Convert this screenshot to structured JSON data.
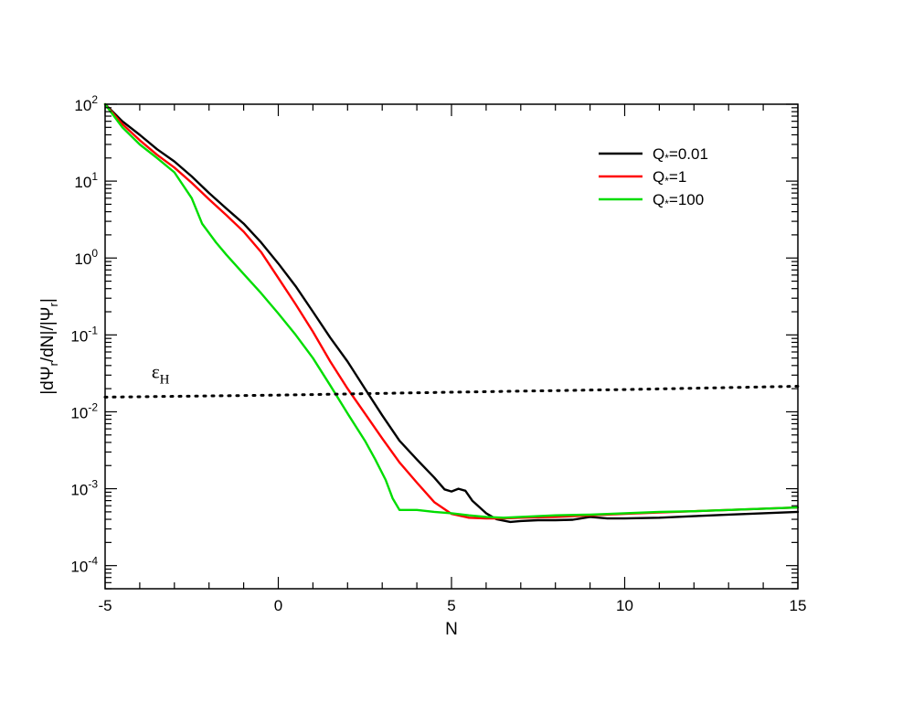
{
  "chart_data": {
    "type": "line",
    "xlabel": "N",
    "ylabel": "|dΨr/dN|/|Ψr|",
    "xlim": [
      -5,
      15
    ],
    "ylim": [
      5e-05,
      100
    ],
    "yscale": "log",
    "grid": false,
    "legend_position": "top-right",
    "x_ticks": [
      -5,
      0,
      5,
      10,
      15
    ],
    "x_tick_labels": [
      "-5",
      "0",
      "5",
      "10",
      "15"
    ],
    "y_ticks": [
      0.0001,
      0.001,
      0.01,
      0.1,
      1,
      10,
      100
    ],
    "y_tick_base": "10",
    "y_tick_exponents": [
      "-4",
      "-3",
      "-2",
      "-1",
      "0",
      "1",
      "2"
    ],
    "series": [
      {
        "name": "Q*=0.01",
        "color": "#000000",
        "style": "solid",
        "x": [
          -5,
          -4.5,
          -4,
          -3.5,
          -3,
          -2.5,
          -2,
          -1.5,
          -1,
          -0.5,
          0,
          0.5,
          1,
          1.5,
          2,
          2.5,
          3,
          3.5,
          4,
          4.5,
          4.8,
          5.0,
          5.2,
          5.4,
          5.6,
          5.8,
          6.0,
          6.3,
          6.7,
          7,
          7.5,
          8,
          8.5,
          9,
          9.5,
          10,
          11,
          12,
          13,
          14,
          15
        ],
        "y": [
          100,
          60,
          40,
          26,
          18,
          11.5,
          7,
          4.4,
          2.8,
          1.6,
          0.85,
          0.43,
          0.2,
          0.092,
          0.045,
          0.02,
          0.009,
          0.0042,
          0.0024,
          0.0014,
          0.00098,
          0.00092,
          0.001,
          0.00094,
          0.0007,
          0.00058,
          0.00048,
          0.0004,
          0.00037,
          0.00038,
          0.00039,
          0.00039,
          0.000395,
          0.00043,
          0.00041,
          0.00041,
          0.00042,
          0.00044,
          0.00046,
          0.00048,
          0.0005
        ]
      },
      {
        "name": "Q*=1",
        "color": "#ff0000",
        "style": "solid",
        "x": [
          -5,
          -4.5,
          -4,
          -3.5,
          -3,
          -2.5,
          -2,
          -1.5,
          -1,
          -0.5,
          0,
          0.5,
          1,
          1.5,
          2,
          2.5,
          3,
          3.5,
          4,
          4.5,
          5,
          5.5,
          6,
          6.5,
          7,
          8,
          9,
          10,
          11,
          12,
          13,
          14,
          15
        ],
        "y": [
          100,
          55,
          34,
          22,
          15,
          9.5,
          5.8,
          3.6,
          2.2,
          1.2,
          0.55,
          0.25,
          0.11,
          0.045,
          0.02,
          0.0095,
          0.0045,
          0.0022,
          0.0012,
          0.00067,
          0.00047,
          0.00042,
          0.00041,
          0.00041,
          0.00042,
          0.00043,
          0.00045,
          0.00047,
          0.00049,
          0.00051,
          0.00053,
          0.00055,
          0.00057
        ]
      },
      {
        "name": "Q*=100",
        "color": "#00dd00",
        "style": "solid",
        "x": [
          -5,
          -4.5,
          -4,
          -3.5,
          -3,
          -2.5,
          -2.2,
          -1.8,
          -1.5,
          -1,
          -0.5,
          0,
          0.5,
          1,
          1.5,
          2,
          2.5,
          2.8,
          3.1,
          3.3,
          3.5,
          4,
          4.5,
          5,
          5.5,
          6,
          6.5,
          7,
          8,
          9,
          10,
          11,
          12,
          13,
          14,
          15
        ],
        "y": [
          100,
          50,
          30,
          20,
          13,
          6,
          2.8,
          1.6,
          1.1,
          0.62,
          0.35,
          0.19,
          0.1,
          0.05,
          0.022,
          0.0095,
          0.0042,
          0.0024,
          0.0013,
          0.00075,
          0.00053,
          0.00053,
          0.0005,
          0.00048,
          0.00045,
          0.00043,
          0.00042,
          0.00043,
          0.00045,
          0.00046,
          0.00048,
          0.0005,
          0.00051,
          0.00053,
          0.00055,
          0.00057
        ]
      },
      {
        "name": "εH",
        "color": "#000000",
        "style": "dotted",
        "x": [
          -5,
          0,
          5,
          10,
          15
        ],
        "y": [
          0.0155,
          0.0165,
          0.018,
          0.0195,
          0.0215
        ]
      }
    ],
    "annotations": [
      {
        "text": "ε",
        "subscript": "H",
        "x": -3.5,
        "y": 0.022
      }
    ]
  }
}
